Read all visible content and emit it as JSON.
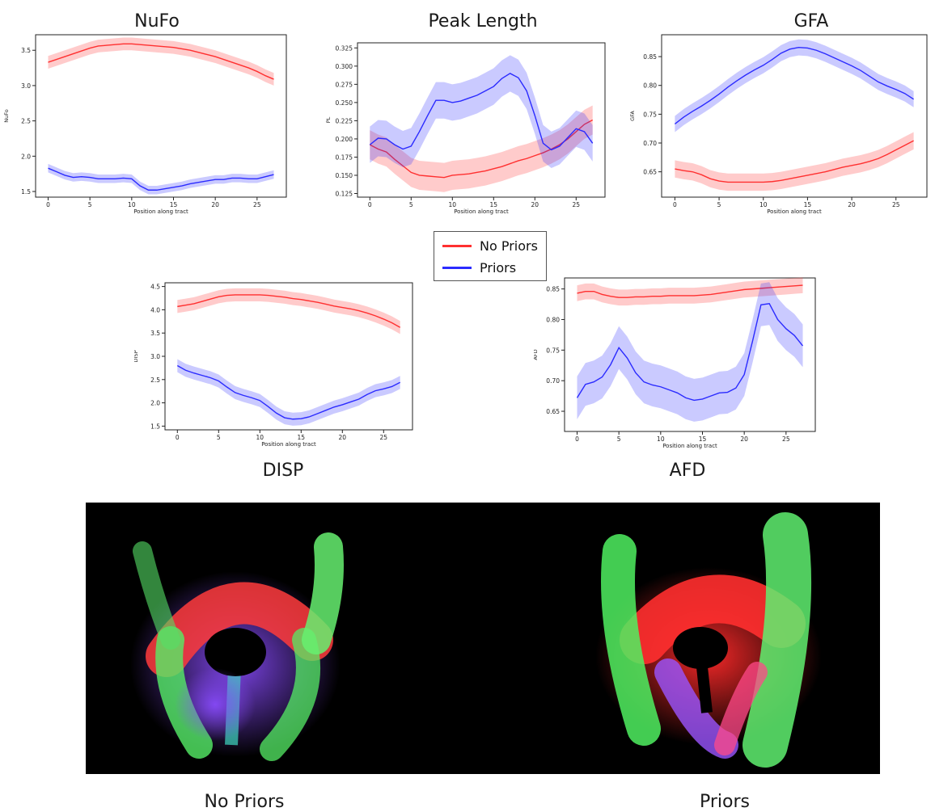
{
  "legend": {
    "items": [
      {
        "label": "No Priors",
        "color": "#ff3030"
      },
      {
        "label": "Priors",
        "color": "#2b2bff"
      }
    ]
  },
  "captions": {
    "left_image": "No Priors",
    "right_image": "Priors"
  },
  "chart_data": [
    {
      "id": "nufo",
      "type": "line",
      "title": "NuFo",
      "xlabel": "Position along tract",
      "ylabel": "NuFo",
      "xlim": [
        -1.5,
        28.5
      ],
      "ylim": [
        1.42,
        3.72
      ],
      "xticks": [
        0,
        5,
        10,
        15,
        20,
        25
      ],
      "yticks": [
        {
          "v": 1.5,
          "label": "1.5"
        },
        {
          "v": 2.0,
          "label": "2.0"
        },
        {
          "v": 2.5,
          "label": "2.5"
        },
        {
          "v": 3.0,
          "label": "3.0"
        },
        {
          "v": 3.5,
          "label": "3.5"
        }
      ],
      "x": [
        0,
        1,
        2,
        3,
        4,
        5,
        6,
        7,
        8,
        9,
        10,
        11,
        12,
        13,
        14,
        15,
        16,
        17,
        18,
        19,
        20,
        21,
        22,
        23,
        24,
        25,
        26,
        27
      ],
      "series": [
        {
          "name": "No Priors",
          "color": "#ff3030",
          "values": [
            3.33,
            3.37,
            3.41,
            3.45,
            3.49,
            3.53,
            3.56,
            3.57,
            3.58,
            3.59,
            3.59,
            3.58,
            3.57,
            3.56,
            3.55,
            3.54,
            3.52,
            3.5,
            3.47,
            3.44,
            3.41,
            3.37,
            3.33,
            3.29,
            3.25,
            3.2,
            3.14,
            3.09
          ],
          "band": 0.09
        },
        {
          "name": "Priors",
          "color": "#2b2bff",
          "values": [
            1.83,
            1.78,
            1.73,
            1.7,
            1.71,
            1.7,
            1.68,
            1.68,
            1.68,
            1.69,
            1.68,
            1.58,
            1.52,
            1.52,
            1.54,
            1.56,
            1.58,
            1.61,
            1.63,
            1.65,
            1.67,
            1.67,
            1.69,
            1.69,
            1.68,
            1.68,
            1.71,
            1.74
          ],
          "band": 0.06
        }
      ]
    },
    {
      "id": "pl",
      "type": "line",
      "title": "Peak Length",
      "xlabel": "Position along tract",
      "ylabel": "PL",
      "xlim": [
        -1.5,
        28.5
      ],
      "ylim": [
        0.12,
        0.332
      ],
      "xticks": [
        0,
        5,
        10,
        15,
        20,
        25
      ],
      "yticks": [
        {
          "v": 0.125,
          "label": "0.125"
        },
        {
          "v": 0.15,
          "label": "0.150"
        },
        {
          "v": 0.175,
          "label": "0.175"
        },
        {
          "v": 0.2,
          "label": "0.200"
        },
        {
          "v": 0.225,
          "label": "0.225"
        },
        {
          "v": 0.25,
          "label": "0.250"
        },
        {
          "v": 0.275,
          "label": "0.275"
        },
        {
          "v": 0.3,
          "label": "0.300"
        },
        {
          "v": 0.325,
          "label": "0.325"
        }
      ],
      "x": [
        0,
        1,
        2,
        3,
        4,
        5,
        6,
        7,
        8,
        9,
        10,
        11,
        12,
        13,
        14,
        15,
        16,
        17,
        18,
        19,
        20,
        21,
        22,
        23,
        24,
        25,
        26,
        27
      ],
      "series": [
        {
          "name": "No Priors",
          "color": "#ff3030",
          "values": [
            0.192,
            0.186,
            0.182,
            0.172,
            0.163,
            0.154,
            0.15,
            0.149,
            0.148,
            0.147,
            0.15,
            0.151,
            0.152,
            0.154,
            0.156,
            0.159,
            0.162,
            0.166,
            0.17,
            0.173,
            0.177,
            0.181,
            0.186,
            0.192,
            0.2,
            0.21,
            0.22,
            0.226
          ],
          "band": 0.02
        },
        {
          "name": "Priors",
          "color": "#2b2bff",
          "values": [
            0.192,
            0.201,
            0.2,
            0.192,
            0.186,
            0.19,
            0.21,
            0.232,
            0.253,
            0.253,
            0.25,
            0.252,
            0.256,
            0.26,
            0.266,
            0.272,
            0.283,
            0.29,
            0.284,
            0.266,
            0.232,
            0.194,
            0.185,
            0.19,
            0.202,
            0.214,
            0.21,
            0.194
          ],
          "band": 0.025
        }
      ]
    },
    {
      "id": "gfa",
      "type": "line",
      "title": "GFA",
      "xlabel": "Position along tract",
      "ylabel": "GFA",
      "xlim": [
        -1.5,
        28.5
      ],
      "ylim": [
        0.606,
        0.888
      ],
      "xticks": [
        0,
        5,
        10,
        15,
        20,
        25
      ],
      "yticks": [
        {
          "v": 0.65,
          "label": "0.65"
        },
        {
          "v": 0.7,
          "label": "0.70"
        },
        {
          "v": 0.75,
          "label": "0.75"
        },
        {
          "v": 0.8,
          "label": "0.80"
        },
        {
          "v": 0.85,
          "label": "0.85"
        }
      ],
      "x": [
        0,
        1,
        2,
        3,
        4,
        5,
        6,
        7,
        8,
        9,
        10,
        11,
        12,
        13,
        14,
        15,
        16,
        17,
        18,
        19,
        20,
        21,
        22,
        23,
        24,
        25,
        26,
        27
      ],
      "series": [
        {
          "name": "No Priors",
          "color": "#ff3030",
          "values": [
            0.655,
            0.652,
            0.65,
            0.645,
            0.638,
            0.634,
            0.632,
            0.632,
            0.632,
            0.632,
            0.632,
            0.633,
            0.635,
            0.638,
            0.641,
            0.644,
            0.647,
            0.65,
            0.654,
            0.658,
            0.661,
            0.664,
            0.668,
            0.673,
            0.68,
            0.688,
            0.696,
            0.704
          ],
          "band": 0.015
        },
        {
          "name": "Priors",
          "color": "#2b2bff",
          "values": [
            0.733,
            0.745,
            0.755,
            0.764,
            0.774,
            0.785,
            0.797,
            0.808,
            0.818,
            0.827,
            0.835,
            0.845,
            0.856,
            0.863,
            0.866,
            0.865,
            0.861,
            0.855,
            0.848,
            0.841,
            0.834,
            0.826,
            0.816,
            0.806,
            0.799,
            0.793,
            0.786,
            0.776
          ],
          "band": 0.014
        }
      ]
    },
    {
      "id": "disp",
      "type": "line",
      "title": "DISP",
      "xlabel": "Position along tract",
      "ylabel": "DISP",
      "xlim": [
        -1.5,
        28.5
      ],
      "ylim": [
        1.42,
        4.58
      ],
      "xticks": [
        0,
        5,
        10,
        15,
        20,
        25
      ],
      "yticks": [
        {
          "v": 1.5,
          "label": "1.5"
        },
        {
          "v": 2.0,
          "label": "2.0"
        },
        {
          "v": 2.5,
          "label": "2.5"
        },
        {
          "v": 3.0,
          "label": "3.0"
        },
        {
          "v": 3.5,
          "label": "3.5"
        },
        {
          "v": 4.0,
          "label": "4.0"
        },
        {
          "v": 4.5,
          "label": "4.5"
        }
      ],
      "x": [
        0,
        1,
        2,
        3,
        4,
        5,
        6,
        7,
        8,
        9,
        10,
        11,
        12,
        13,
        14,
        15,
        16,
        17,
        18,
        19,
        20,
        21,
        22,
        23,
        24,
        25,
        26,
        27
      ],
      "series": [
        {
          "name": "No Priors",
          "color": "#ff3030",
          "values": [
            4.07,
            4.1,
            4.13,
            4.18,
            4.23,
            4.28,
            4.31,
            4.32,
            4.32,
            4.32,
            4.32,
            4.31,
            4.29,
            4.27,
            4.24,
            4.22,
            4.19,
            4.16,
            4.12,
            4.08,
            4.05,
            4.02,
            3.98,
            3.93,
            3.87,
            3.8,
            3.72,
            3.62
          ],
          "band": 0.14
        },
        {
          "name": "Priors",
          "color": "#2b2bff",
          "values": [
            2.8,
            2.7,
            2.64,
            2.59,
            2.54,
            2.47,
            2.34,
            2.22,
            2.16,
            2.11,
            2.05,
            1.92,
            1.78,
            1.68,
            1.65,
            1.66,
            1.7,
            1.77,
            1.84,
            1.91,
            1.96,
            2.02,
            2.08,
            2.18,
            2.26,
            2.3,
            2.35,
            2.44
          ],
          "band": 0.14
        }
      ]
    },
    {
      "id": "afd",
      "type": "line",
      "title": "AFD",
      "xlabel": "Position along tract",
      "ylabel": "AFD",
      "xlim": [
        -1.5,
        28.5
      ],
      "ylim": [
        0.617,
        0.868
      ],
      "xticks": [
        0,
        5,
        10,
        15,
        20,
        25
      ],
      "yticks": [
        {
          "v": 0.65,
          "label": "0.65"
        },
        {
          "v": 0.7,
          "label": "0.70"
        },
        {
          "v": 0.75,
          "label": "0.75"
        },
        {
          "v": 0.8,
          "label": "0.80"
        },
        {
          "v": 0.85,
          "label": "0.85"
        }
      ],
      "x": [
        0,
        1,
        2,
        3,
        4,
        5,
        6,
        7,
        8,
        9,
        10,
        11,
        12,
        13,
        14,
        15,
        16,
        17,
        18,
        19,
        20,
        21,
        22,
        23,
        24,
        25,
        26,
        27
      ],
      "series": [
        {
          "name": "No Priors",
          "color": "#ff3030",
          "values": [
            0.843,
            0.846,
            0.846,
            0.841,
            0.838,
            0.836,
            0.836,
            0.837,
            0.837,
            0.838,
            0.838,
            0.839,
            0.839,
            0.839,
            0.839,
            0.84,
            0.841,
            0.843,
            0.845,
            0.847,
            0.849,
            0.85,
            0.851,
            0.852,
            0.853,
            0.854,
            0.855,
            0.856
          ],
          "band": 0.013
        },
        {
          "name": "Priors",
          "color": "#2b2bff",
          "values": [
            0.672,
            0.694,
            0.698,
            0.706,
            0.726,
            0.754,
            0.737,
            0.713,
            0.698,
            0.693,
            0.69,
            0.685,
            0.68,
            0.672,
            0.668,
            0.67,
            0.675,
            0.68,
            0.681,
            0.688,
            0.71,
            0.765,
            0.824,
            0.826,
            0.8,
            0.785,
            0.774,
            0.757
          ],
          "band": 0.035
        }
      ]
    }
  ]
}
